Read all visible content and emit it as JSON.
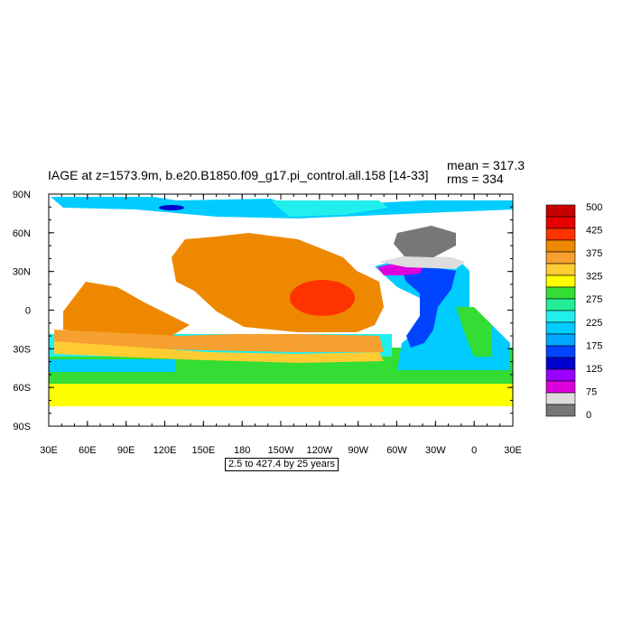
{
  "chart_data": {
    "type": "heatmap",
    "title": "IAGE at z=1573.9m, b.e20.B1850.f09_g17.pi_control.all.158 [14-33]",
    "stats": {
      "mean_label": "mean = 317.3",
      "rms_label": "rms = 334"
    },
    "range_note": "2.5 to 427.4 by 25 years",
    "x_ticks": [
      "30E",
      "60E",
      "90E",
      "120E",
      "150E",
      "180",
      "150W",
      "120W",
      "90W",
      "60W",
      "30W",
      "0",
      "30E"
    ],
    "y_ticks": [
      "90N",
      "60N",
      "30N",
      "0",
      "30S",
      "60S",
      "90S"
    ],
    "xlim_degrees_east": [
      30,
      390
    ],
    "ylim_degrees_north": [
      -90,
      90
    ],
    "colorbar": {
      "labels": [
        "500",
        "425",
        "375",
        "325",
        "275",
        "225",
        "175",
        "125",
        "75",
        "0"
      ],
      "colors": [
        "#c80000",
        "#e60000",
        "#ff3300",
        "#ee8800",
        "#f5a030",
        "#ffcc33",
        "#ffff00",
        "#33dd33",
        "#22ee99",
        "#22eeee",
        "#00ccff",
        "#00a8ff",
        "#0044ff",
        "#0000cc",
        "#9900ff",
        "#dd00dd",
        "#dddddd",
        "#777777"
      ]
    },
    "colors": {
      "land": "#ffffff",
      "axis": "#000000"
    }
  }
}
